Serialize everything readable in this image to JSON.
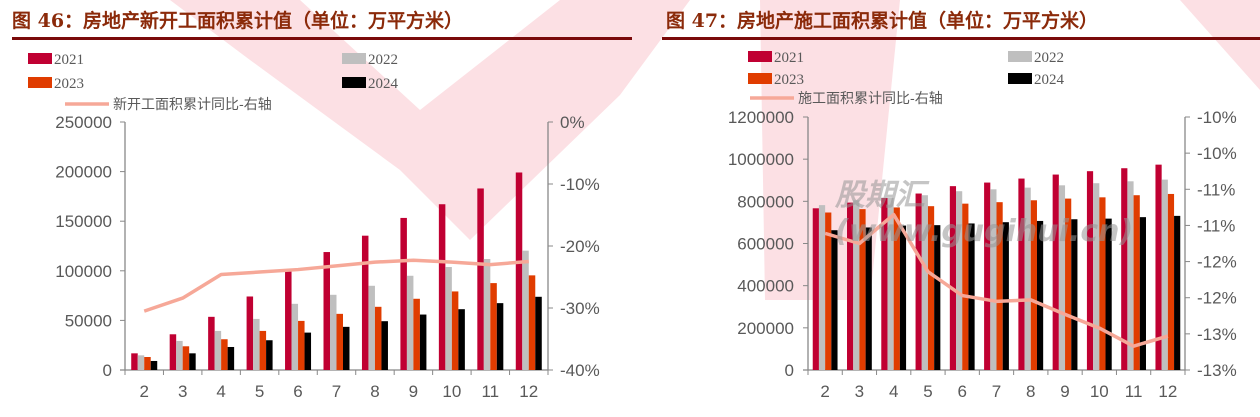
{
  "colors": {
    "y2021": "#C00032",
    "y2022": "#BFBFBF",
    "y2023": "#E03C00",
    "y2024": "#000000",
    "line": "#F6A898",
    "title": "#8B2A0A"
  },
  "watermark": "股期汇(www.gugihui.cn)",
  "chart_data": [
    {
      "type": "bar",
      "title": "图 46：房地产新开工面积累计值（单位：万平方米）",
      "categories": [
        "2",
        "3",
        "4",
        "5",
        "6",
        "7",
        "8",
        "9",
        "10",
        "11",
        "12"
      ],
      "ylim": [
        0,
        250000
      ],
      "yticks": [
        "0",
        "50000",
        "100000",
        "150000",
        "200000",
        "250000"
      ],
      "y2lim": [
        -40,
        0
      ],
      "y2ticks": [
        "-40%",
        "-30%",
        "-20%",
        "-10%",
        "0%"
      ],
      "legend_placement": "top",
      "series": [
        {
          "name": "2021",
          "type": "bar",
          "values": [
            16800,
            36000,
            53600,
            74100,
            100400,
            118900,
            135400,
            153300,
            167100,
            183000,
            199100
          ]
        },
        {
          "name": "2022",
          "type": "bar",
          "values": [
            14800,
            29300,
            39400,
            51500,
            66700,
            75800,
            84900,
            95000,
            103800,
            111900,
            120300
          ]
        },
        {
          "name": "2023",
          "type": "bar",
          "values": [
            13100,
            23900,
            31000,
            39400,
            49500,
            56600,
            63700,
            71800,
            79200,
            87600,
            95400
          ]
        },
        {
          "name": "2024",
          "type": "bar",
          "values": [
            9100,
            16800,
            23200,
            30000,
            37700,
            43500,
            49200,
            55900,
            61300,
            67400,
            73800
          ]
        },
        {
          "name": "新开工面积累计同比-右轴",
          "type": "line",
          "axis": "right",
          "values": [
            -30.5,
            -28.4,
            -24.6,
            -24.2,
            -23.8,
            -23.2,
            -22.6,
            -22.3,
            -22.6,
            -23.0,
            -22.5
          ]
        }
      ]
    },
    {
      "type": "bar",
      "title": "图 47：房地产施工面积累计值（单位：万平方米）",
      "categories": [
        "2",
        "3",
        "4",
        "5",
        "6",
        "7",
        "8",
        "9",
        "10",
        "11",
        "12"
      ],
      "ylim": [
        0,
        1200000
      ],
      "yticks": [
        "0",
        "200000",
        "400000",
        "600000",
        "800000",
        "1000000",
        "1200000"
      ],
      "y2lim": [
        -13.5,
        -10
      ],
      "y2ticks": [
        "-13%",
        "-13%",
        "-12%",
        "-12%",
        "-11%",
        "-11%",
        "-10%",
        "-10%"
      ],
      "legend_placement": "top",
      "series": [
        {
          "name": "2021",
          "type": "bar",
          "values": [
            767000,
            794000,
            816000,
            837000,
            872000,
            889000,
            908000,
            927000,
            943000,
            957000,
            974000
          ]
        },
        {
          "name": "2022",
          "type": "bar",
          "values": [
            782000,
            805000,
            816000,
            829000,
            848000,
            857000,
            865000,
            876000,
            886000,
            895000,
            903000
          ]
        },
        {
          "name": "2023",
          "type": "bar",
          "values": [
            747000,
            763000,
            771000,
            777000,
            789000,
            796000,
            805000,
            813000,
            819000,
            829000,
            835000
          ]
        },
        {
          "name": "2024",
          "type": "bar",
          "values": [
            663000,
            676000,
            685000,
            687000,
            695000,
            701000,
            707000,
            715000,
            718000,
            725000,
            731000
          ]
        },
        {
          "name": "施工面积累计同比-右轴",
          "type": "line",
          "axis": "right",
          "values": [
            -11.61,
            -11.75,
            -11.35,
            -12.14,
            -12.47,
            -12.55,
            -12.53,
            -12.73,
            -12.92,
            -13.17,
            -13.03
          ]
        }
      ]
    }
  ]
}
